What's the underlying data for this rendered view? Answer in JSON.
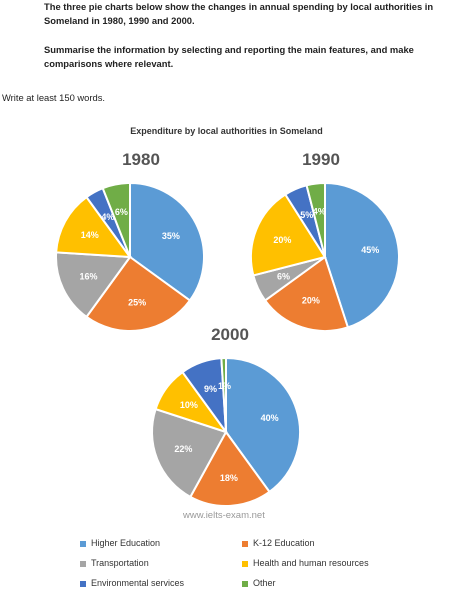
{
  "task": {
    "line1": "The three pie charts below show the changes in annual spending by local authorities in Someland in 1980, 1990 and 2000.",
    "line2": "Summarise the information by selecting and reporting the main features, and make comparisons where relevant.",
    "words": "Write at least 150 words."
  },
  "watermark": "www.ielts-exam.net",
  "chart_data": {
    "type": "pie",
    "title": "Expenditure by local authorities in Someland",
    "categories": [
      "Higher Education",
      "K-12 Education",
      "Transportation",
      "Health and human resources",
      "Environmental services",
      "Other"
    ],
    "colors": [
      "#5b9bd5",
      "#ed7d31",
      "#a5a5a5",
      "#ffc000",
      "#4472c4",
      "#70ad47"
    ],
    "series": [
      {
        "name": "1980",
        "values": [
          35,
          25,
          16,
          14,
          4,
          6
        ]
      },
      {
        "name": "1990",
        "values": [
          45,
          20,
          6,
          20,
          5,
          4
        ]
      },
      {
        "name": "2000",
        "values": [
          40,
          18,
          22,
          10,
          9,
          1
        ]
      }
    ],
    "legend": "bottom"
  }
}
